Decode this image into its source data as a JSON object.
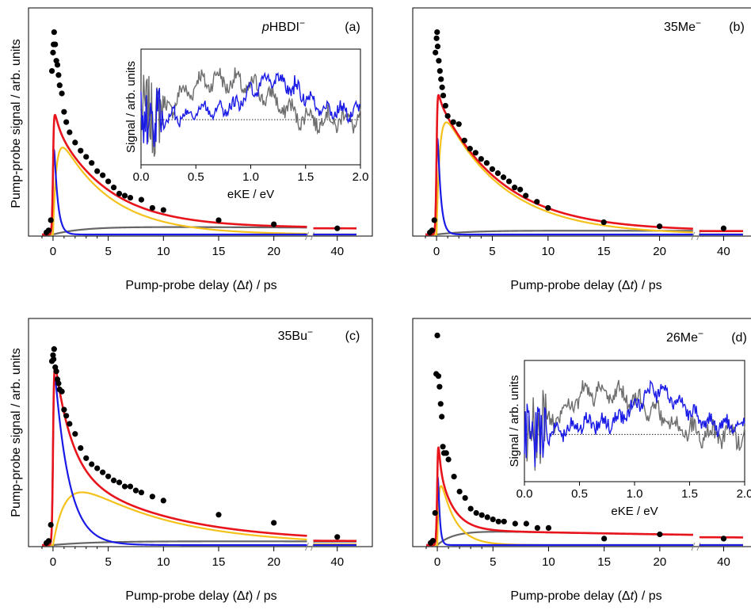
{
  "common": {
    "xlabel_pre": "Pump-probe delay (",
    "xlabel_delta": "Δ",
    "xlabel_t": "t",
    "xlabel_post": ") / ps",
    "ylabel": "Pump-probe signal / arb. units",
    "x_ticks": [
      "0",
      "5",
      "10",
      "15",
      "20",
      "40"
    ],
    "inset_xlabel": "eKE / eV",
    "inset_ylabel": "Signal / arb. units",
    "inset_ticks": [
      "0.0",
      "0.5",
      "1.0",
      "1.5",
      "2.0"
    ]
  },
  "colors": {
    "total_fit": "#e8141b",
    "fast_component": "#1a1ae6",
    "intermediate_component": "#f5c21b",
    "slow_component": "#666666",
    "data_points": "#000000",
    "inset_early": "#1a1ae6",
    "inset_late": "#6e6e6e"
  },
  "chart_data": [
    {
      "type": "scatter",
      "panel_label": "(a)",
      "species_prefix": "p",
      "species": "HBDI",
      "charge": "−",
      "xlim": [
        -1,
        41
      ],
      "x_break": [
        23,
        39
      ],
      "series": [
        {
          "name": "data",
          "x": [
            -0.6,
            -0.4,
            -0.2,
            -0.1,
            0,
            0.05,
            0.1,
            0.2,
            0.3,
            0.4,
            0.5,
            0.6,
            0.8,
            1,
            1.2,
            1.5,
            2,
            2.5,
            3,
            3.5,
            4,
            4.5,
            5,
            5.5,
            6,
            6.5,
            7,
            8,
            9,
            10,
            15,
            20,
            40
          ],
          "y": [
            0.01,
            0.02,
            0.07,
            0.8,
            0.89,
            0.93,
            0.99,
            0.93,
            0.85,
            0.83,
            0.78,
            0.73,
            0.69,
            0.6,
            0.55,
            0.5,
            0.45,
            0.41,
            0.38,
            0.35,
            0.31,
            0.29,
            0.26,
            0.23,
            0.2,
            0.19,
            0.18,
            0.17,
            0.13,
            0.12,
            0.07,
            0.05,
            0.03
          ]
        },
        {
          "name": "fit",
          "A1": 0.64,
          "t1": 0.32,
          "A2": 0.55,
          "rise2": 0.32,
          "t2": 4.6,
          "A3": 0.04,
          "rise3": 2.8,
          "t3": 140
        }
      ],
      "inset": {
        "xlim": [
          0,
          2
        ],
        "x_ticks": [
          0,
          0.5,
          1,
          1.5,
          2
        ],
        "baseline": 0
      }
    },
    {
      "type": "scatter",
      "panel_label": "(b)",
      "species_prefix": "",
      "species": "35Me",
      "charge": "−",
      "xlim": [
        -1,
        41
      ],
      "x_break": [
        23,
        39
      ],
      "series": [
        {
          "name": "data",
          "x": [
            -0.6,
            -0.4,
            -0.2,
            -0.1,
            0,
            0.05,
            0.1,
            0.2,
            0.3,
            0.4,
            0.5,
            0.6,
            0.8,
            1,
            1.5,
            2,
            2.5,
            3,
            3.5,
            4,
            4.5,
            5,
            5.5,
            6,
            6.5,
            7,
            7.5,
            8,
            9,
            10,
            15,
            20,
            40
          ],
          "y": [
            0.01,
            0.02,
            0.07,
            0.89,
            0.96,
            0.99,
            0.92,
            0.85,
            0.8,
            0.76,
            0.72,
            0.68,
            0.63,
            0.58,
            0.55,
            0.54,
            0.46,
            0.42,
            0.4,
            0.37,
            0.35,
            0.32,
            0.3,
            0.28,
            0.26,
            0.23,
            0.22,
            0.19,
            0.16,
            0.13,
            0.06,
            0.04,
            0.03
          ]
        },
        {
          "name": "fit",
          "A1": 0.75,
          "t1": 0.28,
          "A2": 0.68,
          "rise2": 0.3,
          "t2": 5.5,
          "A3": 0.02,
          "rise3": 3,
          "t3": 200
        }
      ]
    },
    {
      "type": "scatter",
      "panel_label": "(c)",
      "species_prefix": "",
      "species": "35Bu",
      "charge": "−",
      "xlim": [
        -1,
        41
      ],
      "x_break": [
        23,
        39
      ],
      "series": [
        {
          "name": "data",
          "x": [
            -0.6,
            -0.4,
            -0.2,
            -0.1,
            0,
            0.05,
            0.1,
            0.2,
            0.3,
            0.4,
            0.5,
            0.6,
            0.8,
            1,
            1.2,
            1.5,
            2,
            2.5,
            3,
            3.5,
            4,
            4.5,
            5,
            5.5,
            6,
            6.5,
            7,
            7.5,
            8,
            9,
            10,
            15,
            20,
            40
          ],
          "y": [
            0.01,
            0.02,
            0.1,
            0.91,
            0.94,
            0.92,
            0.97,
            0.88,
            0.86,
            0.82,
            0.8,
            0.77,
            0.76,
            0.67,
            0.64,
            0.6,
            0.55,
            0.48,
            0.43,
            0.4,
            0.38,
            0.36,
            0.34,
            0.32,
            0.31,
            0.29,
            0.29,
            0.27,
            0.26,
            0.24,
            0.22,
            0.15,
            0.11,
            0.04
          ]
        },
        {
          "name": "fit",
          "A1": 0.98,
          "t1": 1.3,
          "A2": 0.41,
          "rise2": 1.3,
          "t2": 8.5,
          "A3": 0.02,
          "rise3": 4,
          "t3": 250
        }
      ]
    },
    {
      "type": "scatter",
      "panel_label": "(d)",
      "species_prefix": "",
      "species": "26Me",
      "charge": "−",
      "xlim": [
        -1,
        41
      ],
      "x_break": [
        23,
        39
      ],
      "series": [
        {
          "name": "data",
          "x": [
            -0.6,
            -0.4,
            -0.2,
            -0.1,
            0,
            0.1,
            0.2,
            0.3,
            0.4,
            0.5,
            0.6,
            0.8,
            1,
            1.5,
            2,
            2.5,
            3,
            3.5,
            4,
            4.5,
            5,
            5.5,
            6,
            7,
            8,
            9,
            10,
            15,
            20,
            40
          ],
          "y": [
            0.01,
            0.02,
            0.15,
            0.8,
            0.98,
            0.79,
            0.74,
            0.66,
            0.6,
            0.46,
            0.43,
            0.43,
            0.4,
            0.32,
            0.25,
            0.22,
            0.17,
            0.15,
            0.14,
            0.13,
            0.12,
            0.11,
            0.11,
            0.1,
            0.1,
            0.08,
            0.08,
            0.03,
            0.05,
            0.03
          ]
        },
        {
          "name": "fit",
          "A1": 0.6,
          "t1": 0.15,
          "A2": 0.4,
          "rise2": 0.15,
          "t2": 1.3,
          "A3": 0.07,
          "rise3": 1.5,
          "t3": 60
        }
      ],
      "inset": {
        "xlim": [
          0,
          2
        ],
        "x_ticks": [
          0,
          0.5,
          1,
          1.5,
          2
        ],
        "baseline": 0
      }
    }
  ]
}
